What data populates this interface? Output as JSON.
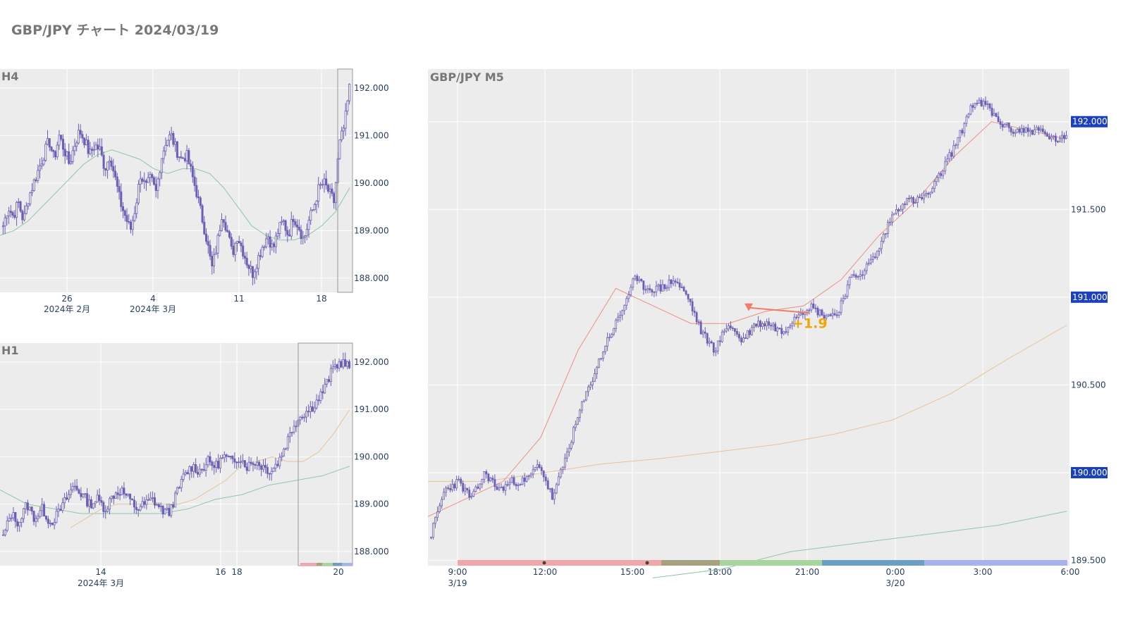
{
  "title": "GBP/JPY チャート 2024/03/19",
  "colors": {
    "candle": "#6a5fb5",
    "plot_bg": "#ececec",
    "grid": "#ffffff",
    "ma_short": "#ec8f82",
    "ma_mid": "#e7c39a",
    "ma_long": "#8fc7a3",
    "price_tag": "#1a3fbf",
    "trade_marker": "#f07c6c",
    "pnl": "#f0a500"
  },
  "chart_data": [
    {
      "type": "candlestick",
      "name": "H4",
      "panel_label": "H4",
      "ylim": [
        187.7,
        192.4
      ],
      "y_ticks": [
        "192.000",
        "191.000",
        "190.000",
        "189.000",
        "188.000"
      ],
      "y_tick_values": [
        192,
        191,
        190,
        189,
        188
      ],
      "x_ticks": [
        {
          "label": "26",
          "sublabel": "2024年 2月"
        },
        {
          "label": "4",
          "sublabel": "2024年 3月"
        },
        {
          "label": "11",
          "sublabel": ""
        },
        {
          "label": "18",
          "sublabel": ""
        }
      ],
      "close_path": [
        189.1,
        189.5,
        189.3,
        189.6,
        189.2,
        189.7,
        190.0,
        190.3,
        190.6,
        190.9,
        190.5,
        191.0,
        190.7,
        190.4,
        190.8,
        191.1,
        190.9,
        190.6,
        190.8,
        190.7,
        190.3,
        190.6,
        190.1,
        189.6,
        189.3,
        189.0,
        189.5,
        190.2,
        189.9,
        190.1,
        189.8,
        190.5,
        190.9,
        191.0,
        190.7,
        190.5,
        190.6,
        190.2,
        189.8,
        189.3,
        188.8,
        188.2,
        188.7,
        189.4,
        189.0,
        188.5,
        188.9,
        188.6,
        188.3,
        188.1,
        188.4,
        188.7,
        188.9,
        188.6,
        189.0,
        189.2,
        188.9,
        189.3,
        189.1,
        188.8,
        189.2,
        189.5,
        189.9,
        190.0,
        189.8,
        189.6,
        190.8,
        191.2,
        192.0
      ],
      "ma_long": [
        188.9,
        189.0,
        189.2,
        189.5,
        189.8,
        190.1,
        190.4,
        190.6,
        190.7,
        190.6,
        190.5,
        190.3,
        190.2,
        190.3,
        190.3,
        190.2,
        189.9,
        189.5,
        189.1,
        188.9,
        188.8,
        188.8,
        188.9,
        189.1,
        189.4,
        189.9
      ],
      "highlight_last": true
    },
    {
      "type": "candlestick",
      "name": "H1",
      "panel_label": "H1",
      "ylim": [
        187.7,
        192.4
      ],
      "y_ticks": [
        "192.000",
        "191.000",
        "190.000",
        "189.000",
        "188.000"
      ],
      "y_tick_values": [
        192,
        191,
        190,
        189,
        188
      ],
      "x_ticks": [
        {
          "label": "14",
          "sublabel": "2024年 3月"
        },
        {
          "label": "16",
          "sublabel": ""
        },
        {
          "label": "18",
          "sublabel": ""
        },
        {
          "label": "20",
          "sublabel": ""
        }
      ],
      "close_path": [
        188.3,
        188.8,
        188.6,
        189.0,
        188.7,
        188.9,
        188.6,
        188.8,
        189.1,
        189.4,
        189.2,
        189.0,
        189.1,
        188.9,
        189.2,
        189.3,
        189.1,
        188.9,
        189.0,
        189.1,
        188.9,
        188.8,
        189.2,
        189.6,
        189.8,
        189.7,
        189.9,
        189.8,
        190.0,
        189.9,
        190.0,
        189.8,
        189.9,
        189.8,
        189.7,
        189.9,
        190.3,
        190.7,
        190.9,
        191.0,
        191.2,
        191.5,
        191.9,
        192.0,
        191.9
      ],
      "ma_mid": [
        188.5,
        188.7,
        188.9,
        189.0,
        189.0,
        189.0,
        189.0,
        189.0,
        189.1,
        189.3,
        189.5,
        189.8,
        189.9,
        190.0,
        189.9,
        189.9,
        190.1,
        190.5,
        191.0
      ],
      "ma_long": [
        189.3,
        189.0,
        188.9,
        188.8,
        188.8,
        188.8,
        188.8,
        188.9,
        189.1,
        189.2,
        189.4,
        189.5,
        189.6,
        189.8
      ],
      "highlight_last": true
    },
    {
      "type": "candlestick",
      "name": "M5",
      "panel_label": "GBP/JPY M5",
      "ylim": [
        189.47,
        192.3
      ],
      "y_ticks": [
        "192.000",
        "191.500",
        "191.000",
        "190.500",
        "190.000",
        "189.500"
      ],
      "y_tick_values": [
        192,
        191.5,
        191,
        190.5,
        190,
        189.5
      ],
      "tagged_levels": [
        "192.000",
        "191.000",
        "190.000"
      ],
      "x_ticks": [
        {
          "label": "9:00",
          "sublabel": "3/19"
        },
        {
          "label": "12:00",
          "sublabel": ""
        },
        {
          "label": "15:00",
          "sublabel": ""
        },
        {
          "label": "18:00",
          "sublabel": ""
        },
        {
          "label": "21:00",
          "sublabel": ""
        },
        {
          "label": "0:00",
          "sublabel": "3/20"
        },
        {
          "label": "3:00",
          "sublabel": ""
        },
        {
          "label": "6:00",
          "sublabel": ""
        }
      ],
      "close_path": [
        189.65,
        189.9,
        189.95,
        189.85,
        190.0,
        189.9,
        189.95,
        189.95,
        190.05,
        189.85,
        190.1,
        190.35,
        190.55,
        190.75,
        190.9,
        191.1,
        191.05,
        191.05,
        191.1,
        191.0,
        190.8,
        190.7,
        190.85,
        190.75,
        190.85,
        190.85,
        190.8,
        190.9,
        190.95,
        190.9,
        190.9,
        191.1,
        191.15,
        191.25,
        191.45,
        191.55,
        191.55,
        191.6,
        191.75,
        191.9,
        192.1,
        192.1,
        192.0,
        191.95,
        191.95,
        191.95,
        191.9,
        191.9
      ],
      "ma_short": [
        189.75,
        189.85,
        189.95,
        190.2,
        190.7,
        191.05,
        190.95,
        190.85,
        190.85,
        190.92,
        190.95,
        191.1,
        191.35,
        191.55,
        191.8,
        192.0,
        191.95,
        191.9
      ],
      "ma_mid": [
        189.95,
        189.95,
        190.0,
        190.05,
        190.08,
        190.12,
        190.16,
        190.22,
        190.3,
        190.45,
        190.65,
        190.84
      ],
      "ma_long": [
        189.4,
        189.45,
        189.55,
        189.6,
        189.65,
        189.7,
        189.78
      ],
      "trade_entry_price": 190.94,
      "trade_exit_price": 190.91,
      "pnl_label": "+1.9",
      "session_bar_colors": [
        "#f0a6ab",
        "#a8a07e",
        "#a8d4a0",
        "#6c9fc4",
        "#a7b3ec"
      ],
      "session_dots": 2
    }
  ]
}
